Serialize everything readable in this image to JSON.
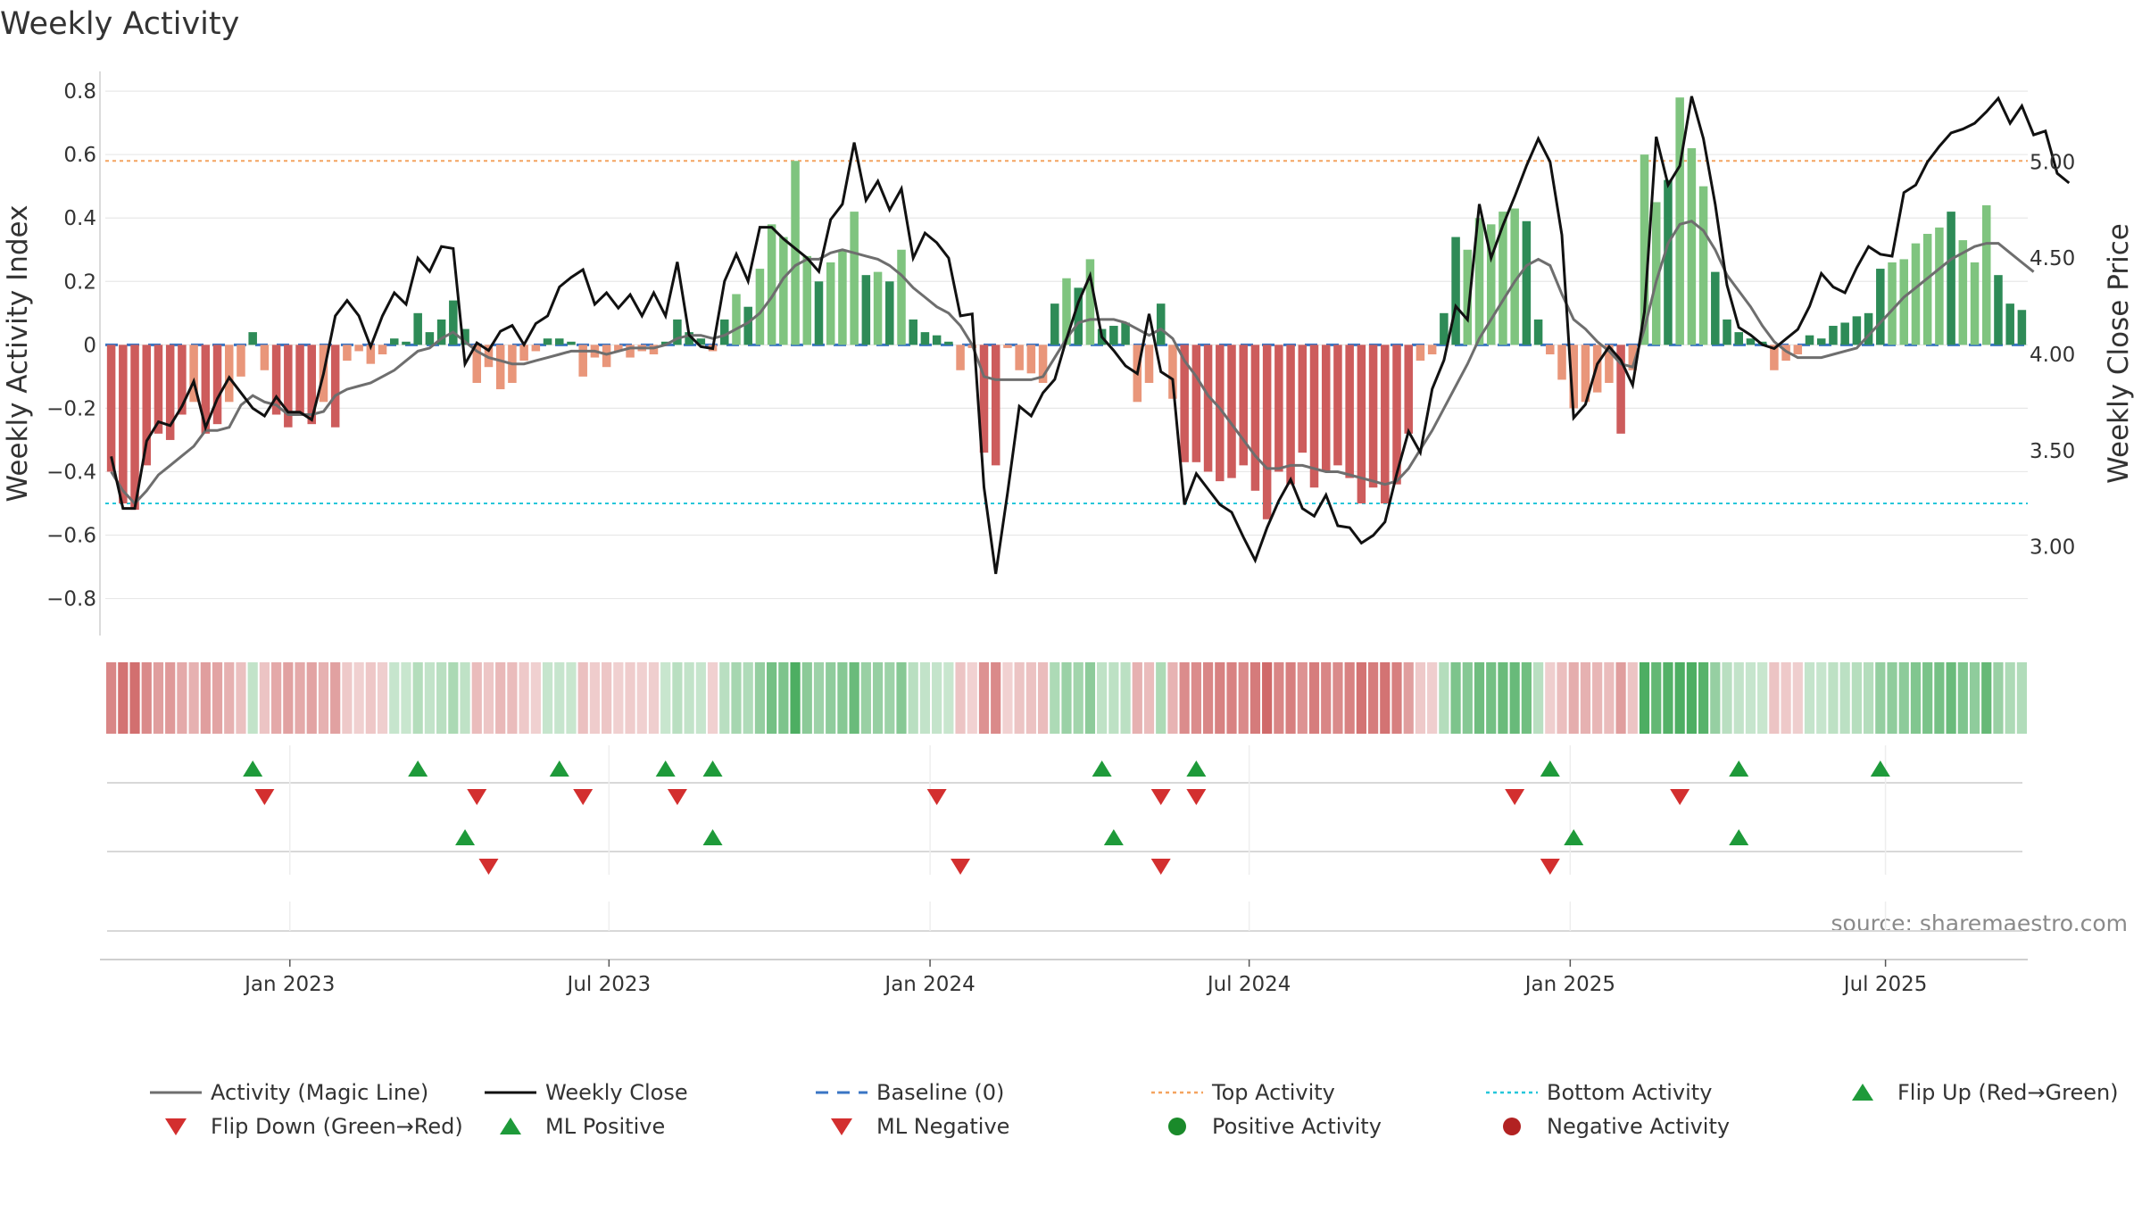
{
  "chart_data": {
    "type": "bar",
    "title": "Weekly Activity",
    "ylabel": "Weekly Activity Index",
    "y2label": "Weekly Close Price",
    "source": "source: sharemaestro.com",
    "ylim": [
      -0.88,
      0.82
    ],
    "y2lim": [
      2.6,
      5.4
    ],
    "yticks": [
      "0.8",
      "0.6",
      "0.4",
      "0.2",
      "0",
      "−0.2",
      "−0.4",
      "−0.6",
      "−0.8"
    ],
    "y2ticks": [
      "5.00",
      "4.50",
      "4.00",
      "3.50",
      "3.00"
    ],
    "xticks": [
      "Jan 2023",
      "Jul 2023",
      "Jan 2024",
      "Jul 2024",
      "Jan 2025",
      "Jul 2025"
    ],
    "top_activity": 0.58,
    "bottom_activity": -0.5,
    "baseline": 0,
    "activity": [
      -0.4,
      -0.5,
      -0.52,
      -0.38,
      -0.28,
      -0.3,
      -0.22,
      -0.18,
      -0.28,
      -0.25,
      -0.18,
      -0.1,
      0.04,
      -0.08,
      -0.22,
      -0.26,
      -0.22,
      -0.25,
      -0.18,
      -0.26,
      -0.05,
      -0.02,
      -0.06,
      -0.03,
      0.02,
      0.01,
      0.1,
      0.04,
      0.08,
      0.14,
      0.05,
      -0.12,
      -0.07,
      -0.14,
      -0.12,
      -0.05,
      -0.02,
      0.02,
      0.02,
      0.01,
      -0.1,
      -0.04,
      -0.07,
      -0.02,
      -0.04,
      -0.02,
      -0.03,
      0.01,
      0.08,
      0.04,
      0.02,
      -0.02,
      0.08,
      0.16,
      0.12,
      0.24,
      0.38,
      0.34,
      0.58,
      0.28,
      0.2,
      0.26,
      0.3,
      0.42,
      0.22,
      0.23,
      0.2,
      0.3,
      0.08,
      0.04,
      0.03,
      0.01,
      -0.08,
      -0.01,
      -0.34,
      -0.38,
      -0.01,
      -0.08,
      -0.09,
      -0.12,
      0.13,
      0.21,
      0.18,
      0.27,
      0.05,
      0.06,
      0.07,
      -0.18,
      -0.12,
      0.13,
      -0.17,
      -0.37,
      -0.37,
      -0.4,
      -0.43,
      -0.42,
      -0.38,
      -0.46,
      -0.55,
      -0.4,
      -0.44,
      -0.34,
      -0.45,
      -0.4,
      -0.38,
      -0.42,
      -0.5,
      -0.45,
      -0.5,
      -0.44,
      -0.28,
      -0.05,
      -0.03,
      0.1,
      0.34,
      0.3,
      0.4,
      0.38,
      0.42,
      0.43,
      0.39,
      0.08,
      -0.03,
      -0.11,
      -0.2,
      -0.18,
      -0.15,
      -0.12,
      -0.28,
      -0.08,
      0.6,
      0.45,
      0.52,
      0.78,
      0.62,
      0.5,
      0.23,
      0.08,
      0.04,
      0.02,
      0.01,
      -0.08,
      -0.05,
      -0.03,
      0.03,
      0.02,
      0.06,
      0.07,
      0.09,
      0.1,
      0.24,
      0.26,
      0.27,
      0.32,
      0.35,
      0.37,
      0.42,
      0.33,
      0.26,
      0.44,
      0.22,
      0.13,
      0.11
    ],
    "magic_line": [
      -0.4,
      -0.46,
      -0.5,
      -0.46,
      -0.41,
      -0.38,
      -0.35,
      -0.32,
      -0.27,
      -0.27,
      -0.26,
      -0.19,
      -0.16,
      -0.18,
      -0.19,
      -0.22,
      -0.22,
      -0.22,
      -0.21,
      -0.16,
      -0.14,
      -0.13,
      -0.12,
      -0.1,
      -0.08,
      -0.05,
      -0.02,
      -0.01,
      0.02,
      0.04,
      0.01,
      -0.02,
      -0.04,
      -0.05,
      -0.06,
      -0.06,
      -0.05,
      -0.04,
      -0.03,
      -0.02,
      -0.02,
      -0.02,
      -0.03,
      -0.02,
      -0.01,
      -0.01,
      -0.01,
      0.0,
      0.02,
      0.03,
      0.03,
      0.02,
      0.03,
      0.05,
      0.07,
      0.1,
      0.15,
      0.21,
      0.25,
      0.27,
      0.27,
      0.29,
      0.3,
      0.29,
      0.28,
      0.27,
      0.25,
      0.22,
      0.18,
      0.15,
      0.12,
      0.1,
      0.06,
      0.0,
      -0.1,
      -0.11,
      -0.11,
      -0.11,
      -0.11,
      -0.1,
      -0.04,
      0.02,
      0.07,
      0.08,
      0.08,
      0.08,
      0.07,
      0.05,
      0.03,
      0.05,
      0.02,
      -0.05,
      -0.1,
      -0.16,
      -0.2,
      -0.25,
      -0.3,
      -0.35,
      -0.39,
      -0.39,
      -0.38,
      -0.38,
      -0.39,
      -0.4,
      -0.4,
      -0.41,
      -0.42,
      -0.43,
      -0.44,
      -0.43,
      -0.39,
      -0.33,
      -0.27,
      -0.2,
      -0.13,
      -0.06,
      0.02,
      0.08,
      0.14,
      0.2,
      0.25,
      0.27,
      0.25,
      0.16,
      0.08,
      0.05,
      0.01,
      -0.02,
      -0.06,
      -0.07,
      0.05,
      0.2,
      0.32,
      0.38,
      0.39,
      0.36,
      0.3,
      0.22,
      0.17,
      0.12,
      0.06,
      0.01,
      -0.02,
      -0.04,
      -0.04,
      -0.04,
      -0.03,
      -0.02,
      -0.01,
      0.03,
      0.07,
      0.11,
      0.15,
      0.18,
      0.21,
      0.24,
      0.27,
      0.29,
      0.31,
      0.32,
      0.32,
      0.29,
      0.26,
      0.23
    ],
    "weekly_close": [
      3.47,
      3.2,
      3.2,
      3.55,
      3.65,
      3.63,
      3.73,
      3.86,
      3.62,
      3.77,
      3.88,
      3.8,
      3.72,
      3.68,
      3.78,
      3.7,
      3.7,
      3.66,
      3.9,
      4.2,
      4.28,
      4.2,
      4.04,
      4.2,
      4.32,
      4.26,
      4.5,
      4.43,
      4.56,
      4.55,
      3.95,
      4.06,
      4.02,
      4.12,
      4.15,
      4.05,
      4.16,
      4.2,
      4.35,
      4.4,
      4.44,
      4.26,
      4.32,
      4.24,
      4.31,
      4.2,
      4.32,
      4.2,
      4.48,
      4.1,
      4.04,
      4.03,
      4.38,
      4.52,
      4.38,
      4.66,
      4.66,
      4.6,
      4.55,
      4.5,
      4.43,
      4.7,
      4.78,
      5.1,
      4.8,
      4.9,
      4.75,
      4.86,
      4.5,
      4.63,
      4.58,
      4.5,
      4.2,
      4.21,
      3.31,
      2.86,
      3.28,
      3.73,
      3.68,
      3.8,
      3.87,
      4.08,
      4.27,
      4.41,
      4.09,
      4.02,
      3.94,
      3.9,
      4.21,
      3.91,
      3.87,
      3.22,
      3.38,
      3.3,
      3.22,
      3.18,
      3.05,
      2.93,
      3.1,
      3.24,
      3.35,
      3.2,
      3.16,
      3.27,
      3.11,
      3.1,
      3.02,
      3.06,
      3.13,
      3.38,
      3.6,
      3.49,
      3.82,
      3.97,
      4.25,
      4.18,
      4.78,
      4.5,
      4.67,
      4.82,
      4.98,
      5.12,
      5.0,
      4.62,
      3.67,
      3.74,
      3.95,
      4.04,
      3.97,
      3.84,
      4.22,
      5.13,
      4.88,
      4.98,
      5.34,
      5.12,
      4.78,
      4.36,
      4.14,
      4.1,
      4.05,
      4.03,
      4.08,
      4.13,
      4.25,
      4.42,
      4.35,
      4.32,
      4.45,
      4.56,
      4.52,
      4.51,
      4.84,
      4.88,
      5.0,
      5.08,
      5.15,
      5.17,
      5.2,
      5.26,
      5.33,
      5.2,
      5.29,
      5.14,
      5.16,
      4.94,
      4.89
    ],
    "flip_up": [
      12,
      26,
      38,
      47,
      51,
      84,
      92,
      122,
      138,
      150
    ],
    "flip_down": [
      13,
      31,
      40,
      48,
      70,
      89,
      92,
      119,
      133
    ],
    "ml_positive": [
      30,
      51,
      85,
      124,
      138
    ],
    "ml_negative": [
      32,
      72,
      89,
      122
    ],
    "legend": [
      {
        "label": "Activity (Magic Line)",
        "key": "magic_line"
      },
      {
        "label": "Weekly Close",
        "key": "weekly_close"
      },
      {
        "label": "Baseline (0)",
        "key": "baseline"
      },
      {
        "label": "Top Activity",
        "key": "top_activity"
      },
      {
        "label": "Bottom Activity",
        "key": "bottom_activity"
      },
      {
        "label": "Flip Up (Red→Green)",
        "key": "flip_up"
      },
      {
        "label": "Flip Down (Green→Red)",
        "key": "flip_down"
      },
      {
        "label": "ML Positive",
        "key": "ml_positive"
      },
      {
        "label": "ML Negative",
        "key": "ml_negative"
      },
      {
        "label": "Positive Activity",
        "key": "positive_activity"
      },
      {
        "label": "Negative Activity",
        "key": "negative_activity"
      }
    ],
    "colors": {
      "pos_dark": "#2e8b57",
      "pos_light": "#7fc47f",
      "neg_dark": "#cd5c5c",
      "neg_light": "#e9967a",
      "magic": "#6e6e6e",
      "close": "#111111",
      "baseline": "#3a75c4",
      "top": "#f4a460",
      "bottom": "#26c6da",
      "flip_up": "#1e9a3a",
      "flip_down": "#d32f2f",
      "pos_dot": "#1a8a2a",
      "neg_dot": "#b22222"
    }
  }
}
